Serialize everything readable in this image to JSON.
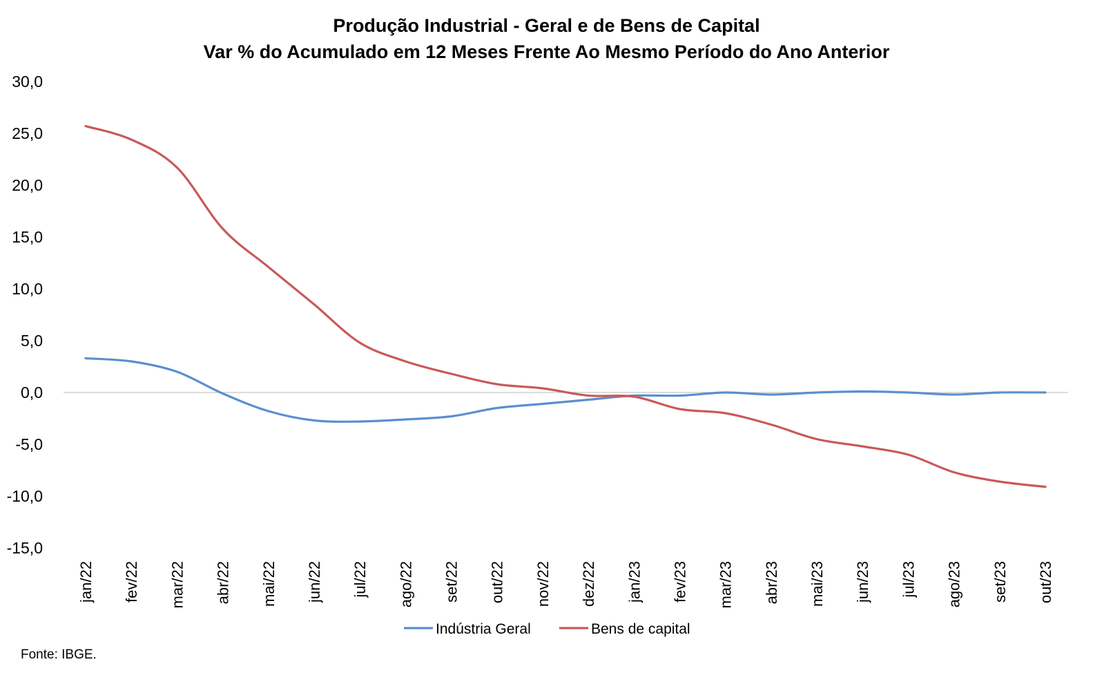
{
  "chart_data": {
    "type": "line",
    "title": "Produção Industrial - Geral e de Bens de Capital",
    "subtitle": "Var % do Acumulado em 12 Meses Frente Ao Mesmo Período do Ano Anterior",
    "xlabel": "",
    "ylabel": "",
    "categories": [
      "jan/22",
      "fev/22",
      "mar/22",
      "abr/22",
      "mai/22",
      "jun/22",
      "jul/22",
      "ago/22",
      "set/22",
      "out/22",
      "nov/22",
      "dez/22",
      "jan/23",
      "fev/23",
      "mar/23",
      "abr/23",
      "mai/23",
      "jun/23",
      "jul/23",
      "ago/23",
      "set/23",
      "out/23"
    ],
    "ylim": [
      -15,
      30
    ],
    "yticks": [
      30,
      25,
      20,
      15,
      10,
      5,
      0,
      -5,
      -10,
      -15
    ],
    "ytick_labels": [
      "30,0",
      "25,0",
      "20,0",
      "15,0",
      "10,0",
      "5,0",
      "0,0",
      "-5,0",
      "-10,0",
      "-15,0"
    ],
    "grid": false,
    "zero_line": true,
    "legend_position": "bottom",
    "series": [
      {
        "name": "Indústria Geral",
        "color": "#5b8fcf",
        "values": [
          3.3,
          3.0,
          2.0,
          -0.1,
          -1.8,
          -2.7,
          -2.8,
          -2.6,
          -2.3,
          -1.5,
          -1.1,
          -0.7,
          -0.3,
          -0.3,
          0.0,
          -0.2,
          0.0,
          0.1,
          0.0,
          -0.2,
          0.0,
          0.0
        ]
      },
      {
        "name": "Bens de capital",
        "color": "#c9595b",
        "values": [
          25.7,
          24.4,
          21.7,
          15.8,
          12.1,
          8.5,
          4.8,
          3.0,
          1.8,
          0.8,
          0.4,
          -0.3,
          -0.4,
          -1.6,
          -2.0,
          -3.1,
          -4.5,
          -5.2,
          -6.0,
          -7.7,
          -8.6,
          -9.1
        ]
      }
    ],
    "source": "Fonte: IBGE."
  }
}
